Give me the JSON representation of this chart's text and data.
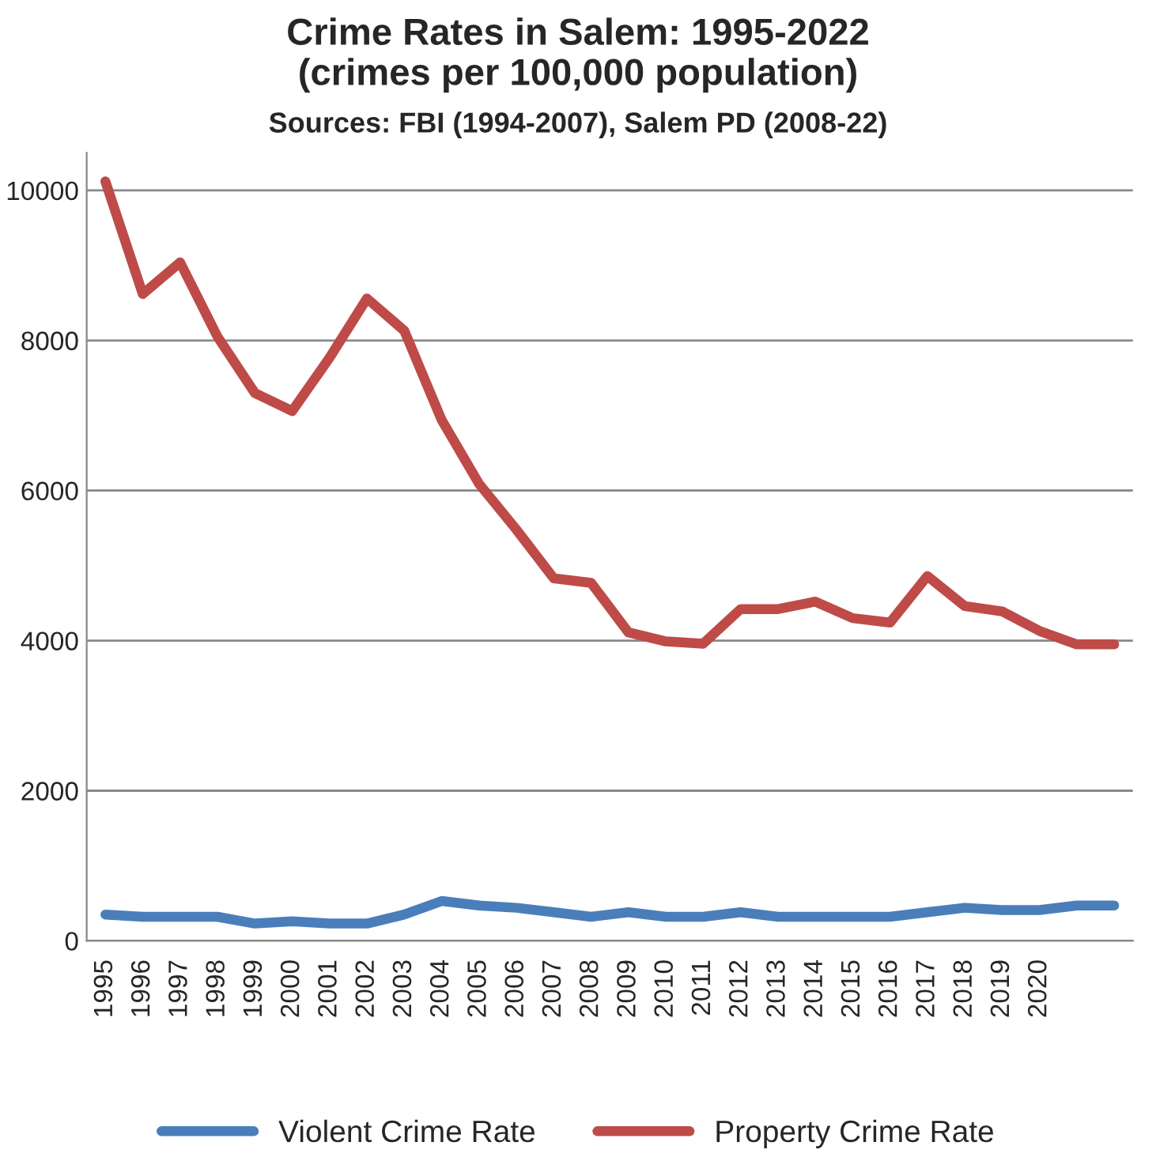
{
  "chart_data": {
    "type": "line",
    "title": "Crime Rates in Salem: 1995-2022\n(crimes per 100,000 population)",
    "subtitle": "Sources: FBI (1994-2007), Salem PD (2008-22)",
    "categories": [
      "1995",
      "1996",
      "1997",
      "1998",
      "1999",
      "2000",
      "2001",
      "2002",
      "2003",
      "2004",
      "2005",
      "2006",
      "2007",
      "2008",
      "2009",
      "2010",
      "2011",
      "2012",
      "2013",
      "2014",
      "2015",
      "2016",
      "2017",
      "2018",
      "2019",
      "2020",
      null,
      null
    ],
    "series": [
      {
        "name": "Violent Crime Rate",
        "color": "#4a7ebb",
        "values": [
          350,
          320,
          320,
          320,
          230,
          260,
          230,
          230,
          350,
          530,
          470,
          440,
          380,
          320,
          380,
          320,
          320,
          380,
          320,
          320,
          320,
          320,
          380,
          440,
          410,
          410,
          470,
          470
        ]
      },
      {
        "name": "Property Crime Rate",
        "color": "#be4b48",
        "values": [
          10120,
          8620,
          9040,
          8050,
          7300,
          7060,
          7770,
          8560,
          8130,
          6940,
          6090,
          5480,
          4830,
          4770,
          4110,
          3990,
          3960,
          4420,
          4420,
          4520,
          4300,
          4240,
          4860,
          4460,
          4390,
          4130,
          3950,
          3950
        ]
      }
    ],
    "ylim": [
      0,
      10500
    ],
    "yticks": [
      0,
      2000,
      4000,
      6000,
      8000,
      10000
    ],
    "grid": "y",
    "legend": "bottom",
    "marker": "none",
    "line_style": "solid"
  }
}
